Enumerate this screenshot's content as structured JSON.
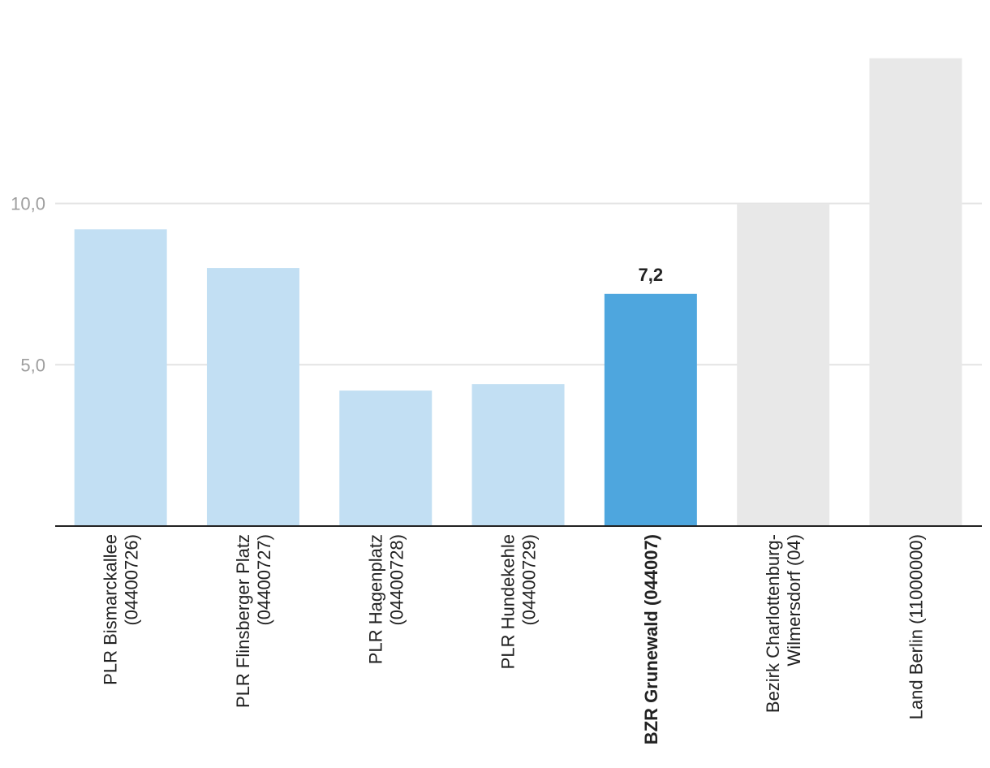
{
  "chart_data": {
    "type": "bar",
    "title": "",
    "xlabel": "",
    "ylabel": "",
    "categories": [
      [
        "PLR Bismarckallee",
        "(04400726)"
      ],
      [
        "PLR Flinsberger Platz",
        "(04400727)"
      ],
      [
        "PLR Hagenplatz",
        "(04400728)"
      ],
      [
        "PLR Hundekehle",
        "(04400729)"
      ],
      [
        "BZR Grunewald (044007)"
      ],
      [
        "Bezirk Charlottenburg-",
        "Wilmersdorf (04)"
      ],
      [
        "Land Berlin (11000000)"
      ]
    ],
    "values": [
      9.2,
      8.0,
      4.2,
      4.4,
      7.2,
      10.0,
      14.5
    ],
    "highlight_index": 4,
    "highlight_label": "7,2",
    "bar_colors": [
      "#c2dff3",
      "#c2dff3",
      "#c2dff3",
      "#c2dff3",
      "#4ea6de",
      "#e8e8e8",
      "#e8e8e8"
    ],
    "yticks": [
      {
        "value": 5,
        "label": "5,0"
      },
      {
        "value": 10,
        "label": "10,0"
      }
    ],
    "ylim": [
      0,
      15.5
    ],
    "grid": true,
    "legend": "none"
  }
}
